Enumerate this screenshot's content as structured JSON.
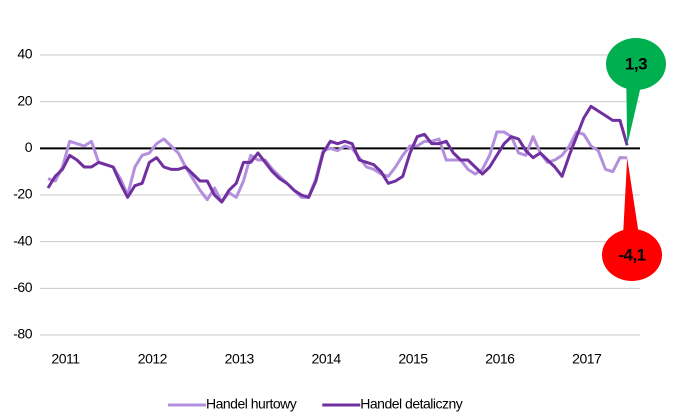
{
  "chart_data": {
    "type": "line",
    "categories": [
      null,
      null,
      "2011",
      null,
      null,
      null,
      null,
      null,
      null,
      null,
      null,
      null,
      null,
      null,
      "2012",
      null,
      null,
      null,
      null,
      null,
      null,
      null,
      null,
      null,
      null,
      null,
      "2013",
      null,
      null,
      null,
      null,
      null,
      null,
      null,
      null,
      null,
      null,
      null,
      "2014",
      null,
      null,
      null,
      null,
      null,
      null,
      null,
      null,
      null,
      null,
      null,
      "2015",
      null,
      null,
      null,
      null,
      null,
      null,
      null,
      null,
      null,
      null,
      null,
      "2016",
      null,
      null,
      null,
      null,
      null,
      null,
      null,
      null,
      null,
      null,
      null,
      "2017",
      null,
      null,
      null,
      null,
      null,
      null
    ],
    "series": [
      {
        "name": "Handel hurtowy",
        "color": "#b38fdd",
        "values": [
          -13,
          -14,
          -8,
          3,
          2,
          1,
          3,
          -6,
          -7,
          -8,
          -13,
          -20,
          -8,
          -3,
          -2,
          2,
          4,
          1,
          -2,
          -8,
          -13,
          -18,
          -22,
          -17,
          -23,
          -19,
          -21,
          -14,
          -3,
          -5,
          -5,
          -9,
          -12,
          -15,
          -18,
          -21,
          -21,
          -13,
          -1,
          0,
          -1,
          1,
          0,
          -4,
          -8,
          -9,
          -11,
          -12,
          -8,
          -3,
          1,
          1,
          3,
          3,
          4,
          -5,
          -5,
          -5,
          -9,
          -11,
          -9,
          -3,
          7,
          7,
          5,
          -2,
          -3,
          5,
          -2,
          -6,
          -5,
          -3,
          1,
          7,
          6,
          1,
          -1,
          -9,
          -10,
          -4,
          -4.1
        ],
        "value_labels": [
          null,
          null,
          null,
          null,
          null,
          null,
          null,
          null,
          null,
          null,
          null,
          null,
          null,
          null,
          null,
          null,
          null,
          null,
          null,
          null,
          null,
          null,
          null,
          null,
          null,
          null,
          null,
          null,
          null,
          null,
          null,
          null,
          null,
          null,
          null,
          null,
          null,
          null,
          null,
          null,
          null,
          null,
          null,
          null,
          null,
          null,
          null,
          null,
          null,
          null,
          null,
          null,
          null,
          null,
          null,
          null,
          null,
          null,
          null,
          null,
          null,
          null,
          null,
          null,
          null,
          null,
          null,
          null,
          null,
          null,
          null,
          null,
          null,
          null,
          null,
          null,
          null,
          null,
          null,
          null,
          "-4,1"
        ]
      },
      {
        "name": "Handel detaliczny",
        "color": "#7030a0",
        "values": [
          -17,
          -12,
          -9,
          -3,
          -5,
          -8,
          -8,
          -6,
          -7,
          -8,
          -15,
          -21,
          -16,
          -15,
          -6,
          -4,
          -8,
          -9,
          -9,
          -8,
          -11,
          -14,
          -14,
          -20,
          -23,
          -18,
          -15,
          -6,
          -6,
          -2,
          -6,
          -10,
          -13,
          -15,
          -18,
          -20,
          -21,
          -14,
          -2,
          3,
          2,
          3,
          2,
          -5,
          -6,
          -7,
          -10,
          -15,
          -14,
          -12,
          -2,
          5,
          6,
          2,
          2,
          3,
          -2,
          -5,
          -5,
          -8,
          -11,
          -8,
          -3,
          2,
          5,
          4,
          -1,
          -4,
          -2,
          -5,
          -8,
          -12,
          -3,
          5,
          13,
          18,
          16,
          14,
          12,
          12,
          1.3
        ],
        "value_labels": [
          null,
          null,
          null,
          null,
          null,
          null,
          null,
          null,
          null,
          null,
          null,
          null,
          null,
          null,
          null,
          null,
          null,
          null,
          null,
          null,
          null,
          null,
          null,
          null,
          null,
          null,
          null,
          null,
          null,
          null,
          null,
          null,
          null,
          null,
          null,
          null,
          null,
          null,
          null,
          null,
          null,
          null,
          null,
          null,
          null,
          null,
          null,
          null,
          null,
          null,
          null,
          null,
          null,
          null,
          null,
          null,
          null,
          null,
          null,
          null,
          null,
          null,
          null,
          null,
          null,
          null,
          null,
          null,
          null,
          null,
          null,
          null,
          null,
          null,
          null,
          null,
          null,
          null,
          null,
          null,
          "1,3"
        ]
      }
    ],
    "ylim": [
      -80,
      40
    ],
    "yticks": [
      -80,
      -60,
      -40,
      -20,
      0,
      20,
      40
    ],
    "grid": true,
    "legend": "bottom"
  }
}
